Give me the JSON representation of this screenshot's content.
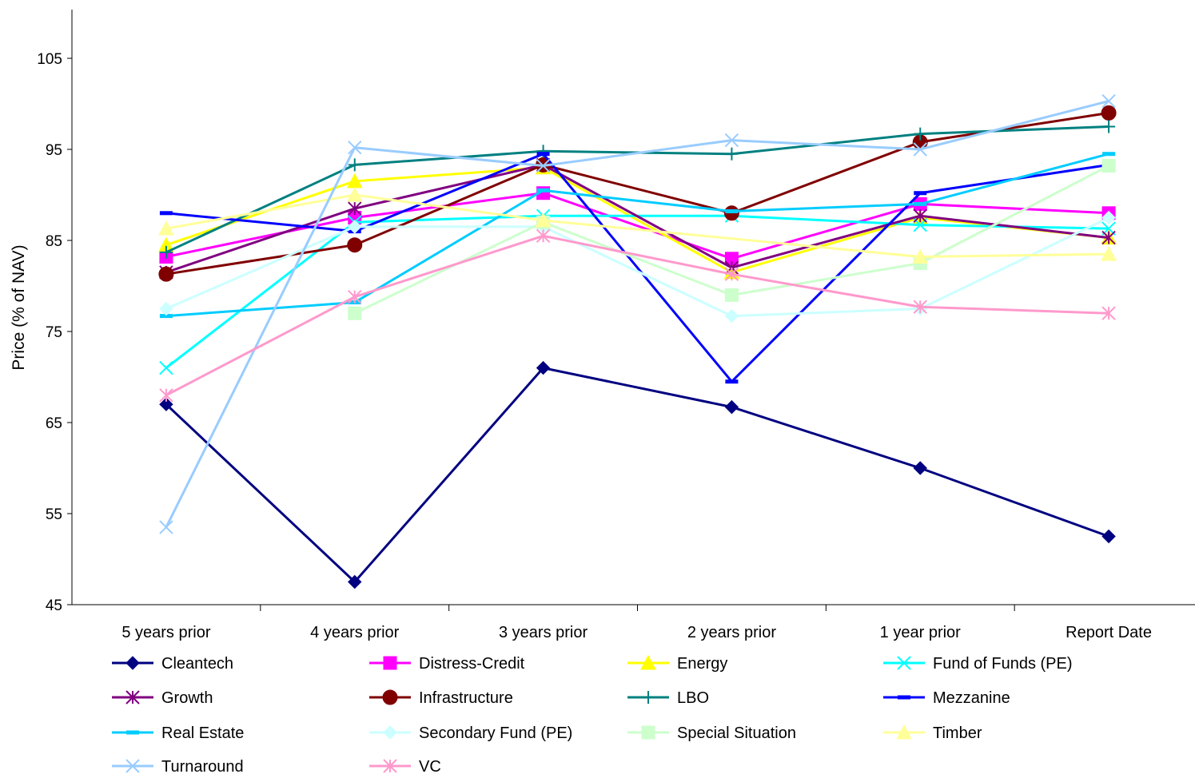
{
  "chart_data": {
    "type": "line",
    "title": "",
    "xlabel": "",
    "ylabel": "Price (% of NAV)",
    "ylim": [
      45,
      110
    ],
    "yticks": [
      45,
      55,
      65,
      75,
      85,
      95,
      105
    ],
    "grid": false,
    "legend": "bottom",
    "categories": [
      "5 years prior",
      "4 years prior",
      "3 years prior",
      "2 years prior",
      "1 year prior",
      "Report Date"
    ],
    "series": [
      {
        "name": "Cleantech",
        "color": "#000080",
        "marker": "diamond",
        "values": [
          67.0,
          47.5,
          71.0,
          66.7,
          60.0,
          52.5
        ]
      },
      {
        "name": "Distress-Credit",
        "color": "#ff00ff",
        "marker": "square",
        "values": [
          83.2,
          87.5,
          90.2,
          83.0,
          89.0,
          88.0
        ]
      },
      {
        "name": "Energy",
        "color": "#ffff00",
        "marker": "triangle",
        "values": [
          84.5,
          91.5,
          93.0,
          81.5,
          87.5,
          85.3
        ]
      },
      {
        "name": "Fund of Funds (PE)",
        "color": "#00ffff",
        "marker": "x",
        "values": [
          71.0,
          87.0,
          87.7,
          87.7,
          86.7,
          86.3
        ]
      },
      {
        "name": "Growth",
        "color": "#800080",
        "marker": "star",
        "values": [
          81.5,
          88.5,
          93.3,
          82.0,
          87.7,
          85.3
        ]
      },
      {
        "name": "Infrastructure",
        "color": "#800000",
        "marker": "circle",
        "values": [
          81.3,
          84.5,
          93.3,
          88.0,
          95.8,
          99.0
        ]
      },
      {
        "name": "LBO",
        "color": "#008080",
        "marker": "plus",
        "values": [
          83.7,
          93.3,
          94.8,
          94.5,
          96.7,
          97.5
        ]
      },
      {
        "name": "Mezzanine",
        "color": "#0000ff",
        "marker": "dash",
        "values": [
          88.0,
          86.0,
          94.5,
          69.5,
          90.2,
          93.3
        ]
      },
      {
        "name": "Real Estate",
        "color": "#00ccff",
        "marker": "dash",
        "values": [
          76.7,
          78.2,
          90.5,
          88.2,
          89.0,
          94.5
        ]
      },
      {
        "name": "Secondary Fund (PE)",
        "color": "#ccffff",
        "marker": "diamond",
        "values": [
          77.5,
          86.5,
          86.5,
          76.7,
          77.5,
          87.5
        ]
      },
      {
        "name": "Special Situation",
        "color": "#ccffcc",
        "marker": "square",
        "values": [
          null,
          77.0,
          87.0,
          79.0,
          82.5,
          93.2
        ]
      },
      {
        "name": "Timber",
        "color": "#ffff99",
        "marker": "triangle",
        "values": [
          86.3,
          90.0,
          87.2,
          null,
          83.2,
          83.5
        ]
      },
      {
        "name": "Turnaround",
        "color": "#99ccff",
        "marker": "x",
        "values": [
          53.5,
          95.2,
          93.2,
          96.0,
          95.0,
          100.3
        ]
      },
      {
        "name": "VC",
        "color": "#ff99cc",
        "marker": "star",
        "values": [
          68.0,
          78.8,
          85.5,
          81.3,
          77.7,
          77.0
        ]
      }
    ]
  }
}
